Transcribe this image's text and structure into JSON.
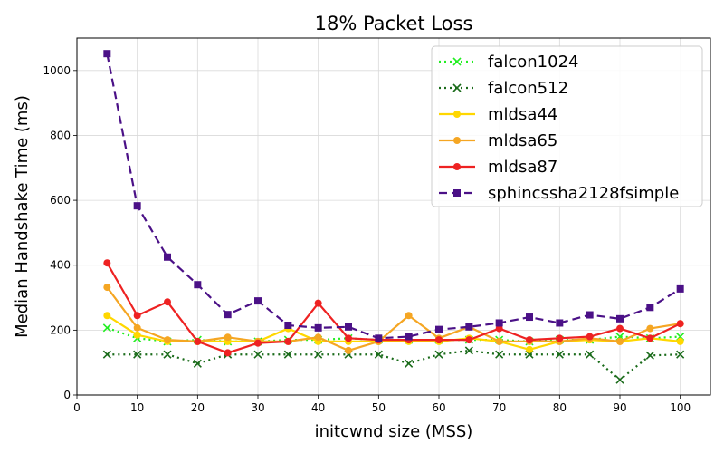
{
  "chart_data": {
    "type": "line",
    "title": "18% Packet Loss",
    "xlabel": "initcwnd size (MSS)",
    "ylabel": "Median Handshake Time (ms)",
    "xlim": [
      0,
      105
    ],
    "ylim": [
      0,
      1100
    ],
    "xticks": [
      0,
      10,
      20,
      30,
      40,
      50,
      60,
      70,
      80,
      90,
      100
    ],
    "yticks": [
      0,
      200,
      400,
      600,
      800,
      1000
    ],
    "grid": true,
    "legend_position": "top-right",
    "x": [
      5,
      10,
      15,
      20,
      25,
      30,
      35,
      40,
      45,
      50,
      55,
      60,
      65,
      70,
      75,
      80,
      85,
      90,
      95,
      100
    ],
    "series": [
      {
        "name": "falcon1024",
        "color": "#22ee22",
        "line_style": "dotted",
        "marker": "x",
        "values": [
          207,
          175,
          165,
          170,
          165,
          165,
          170,
          170,
          175,
          170,
          170,
          170,
          170,
          170,
          165,
          170,
          170,
          180,
          175,
          180
        ]
      },
      {
        "name": "falcon512",
        "color": "#1a6b1a",
        "line_style": "dotted",
        "marker": "x",
        "values": [
          125,
          125,
          125,
          97,
          125,
          125,
          125,
          125,
          125,
          125,
          97,
          125,
          137,
          125,
          125,
          125,
          125,
          47,
          122,
          125
        ]
      },
      {
        "name": "mldsa44",
        "color": "#ffd700",
        "line_style": "solid",
        "marker": "circle",
        "values": [
          245,
          185,
          165,
          165,
          165,
          165,
          205,
          165,
          165,
          165,
          165,
          165,
          175,
          165,
          140,
          165,
          170,
          165,
          175,
          165
        ]
      },
      {
        "name": "mldsa65",
        "color": "#f5a623",
        "line_style": "solid",
        "marker": "circle",
        "values": [
          332,
          207,
          170,
          165,
          178,
          165,
          165,
          178,
          137,
          165,
          245,
          175,
          210,
          165,
          165,
          165,
          175,
          165,
          205,
          220
        ]
      },
      {
        "name": "mldsa87",
        "color": "#ee2222",
        "line_style": "solid",
        "marker": "circle",
        "values": [
          407,
          245,
          287,
          165,
          130,
          160,
          165,
          283,
          175,
          170,
          170,
          170,
          170,
          205,
          170,
          175,
          180,
          205,
          175,
          220
        ]
      },
      {
        "name": "sphincssha2128fsimple",
        "color": "#4b1187",
        "line_style": "dashed",
        "marker": "square",
        "values": [
          1052,
          583,
          425,
          340,
          248,
          290,
          215,
          207,
          210,
          175,
          180,
          202,
          210,
          222,
          240,
          222,
          247,
          235,
          270,
          327
        ]
      }
    ]
  }
}
